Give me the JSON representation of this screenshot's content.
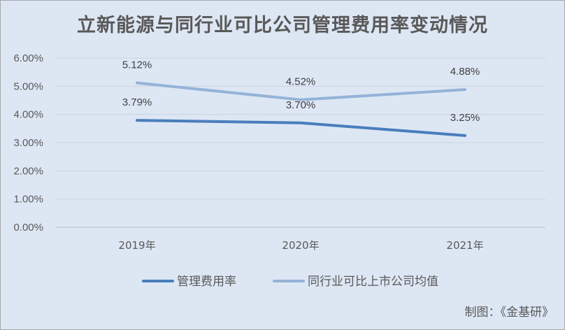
{
  "chart_data": {
    "type": "line",
    "title": "立新能源与同行业可比公司管理费用率变动情况",
    "categories": [
      "2019年",
      "2020年",
      "2021年"
    ],
    "ylim": [
      0,
      6
    ],
    "yticks": [
      0,
      1,
      2,
      3,
      4,
      5,
      6
    ],
    "ytick_labels": [
      "0.00%",
      "1.00%",
      "2.00%",
      "3.00%",
      "4.00%",
      "5.00%",
      "6.00%"
    ],
    "grid": true,
    "legend_position": "bottom",
    "series": [
      {
        "name": "管理费用率",
        "values": [
          3.79,
          3.7,
          3.25
        ],
        "labels": [
          "3.79%",
          "3.70%",
          "3.25%"
        ],
        "color": "#4a7ebb"
      },
      {
        "name": "同行业可比上市公司均值",
        "values": [
          5.12,
          4.52,
          4.88
        ],
        "labels": [
          "5.12%",
          "4.52%",
          "4.88%"
        ],
        "color": "#95b3d7"
      }
    ]
  },
  "credit": "制图：《金基研》"
}
